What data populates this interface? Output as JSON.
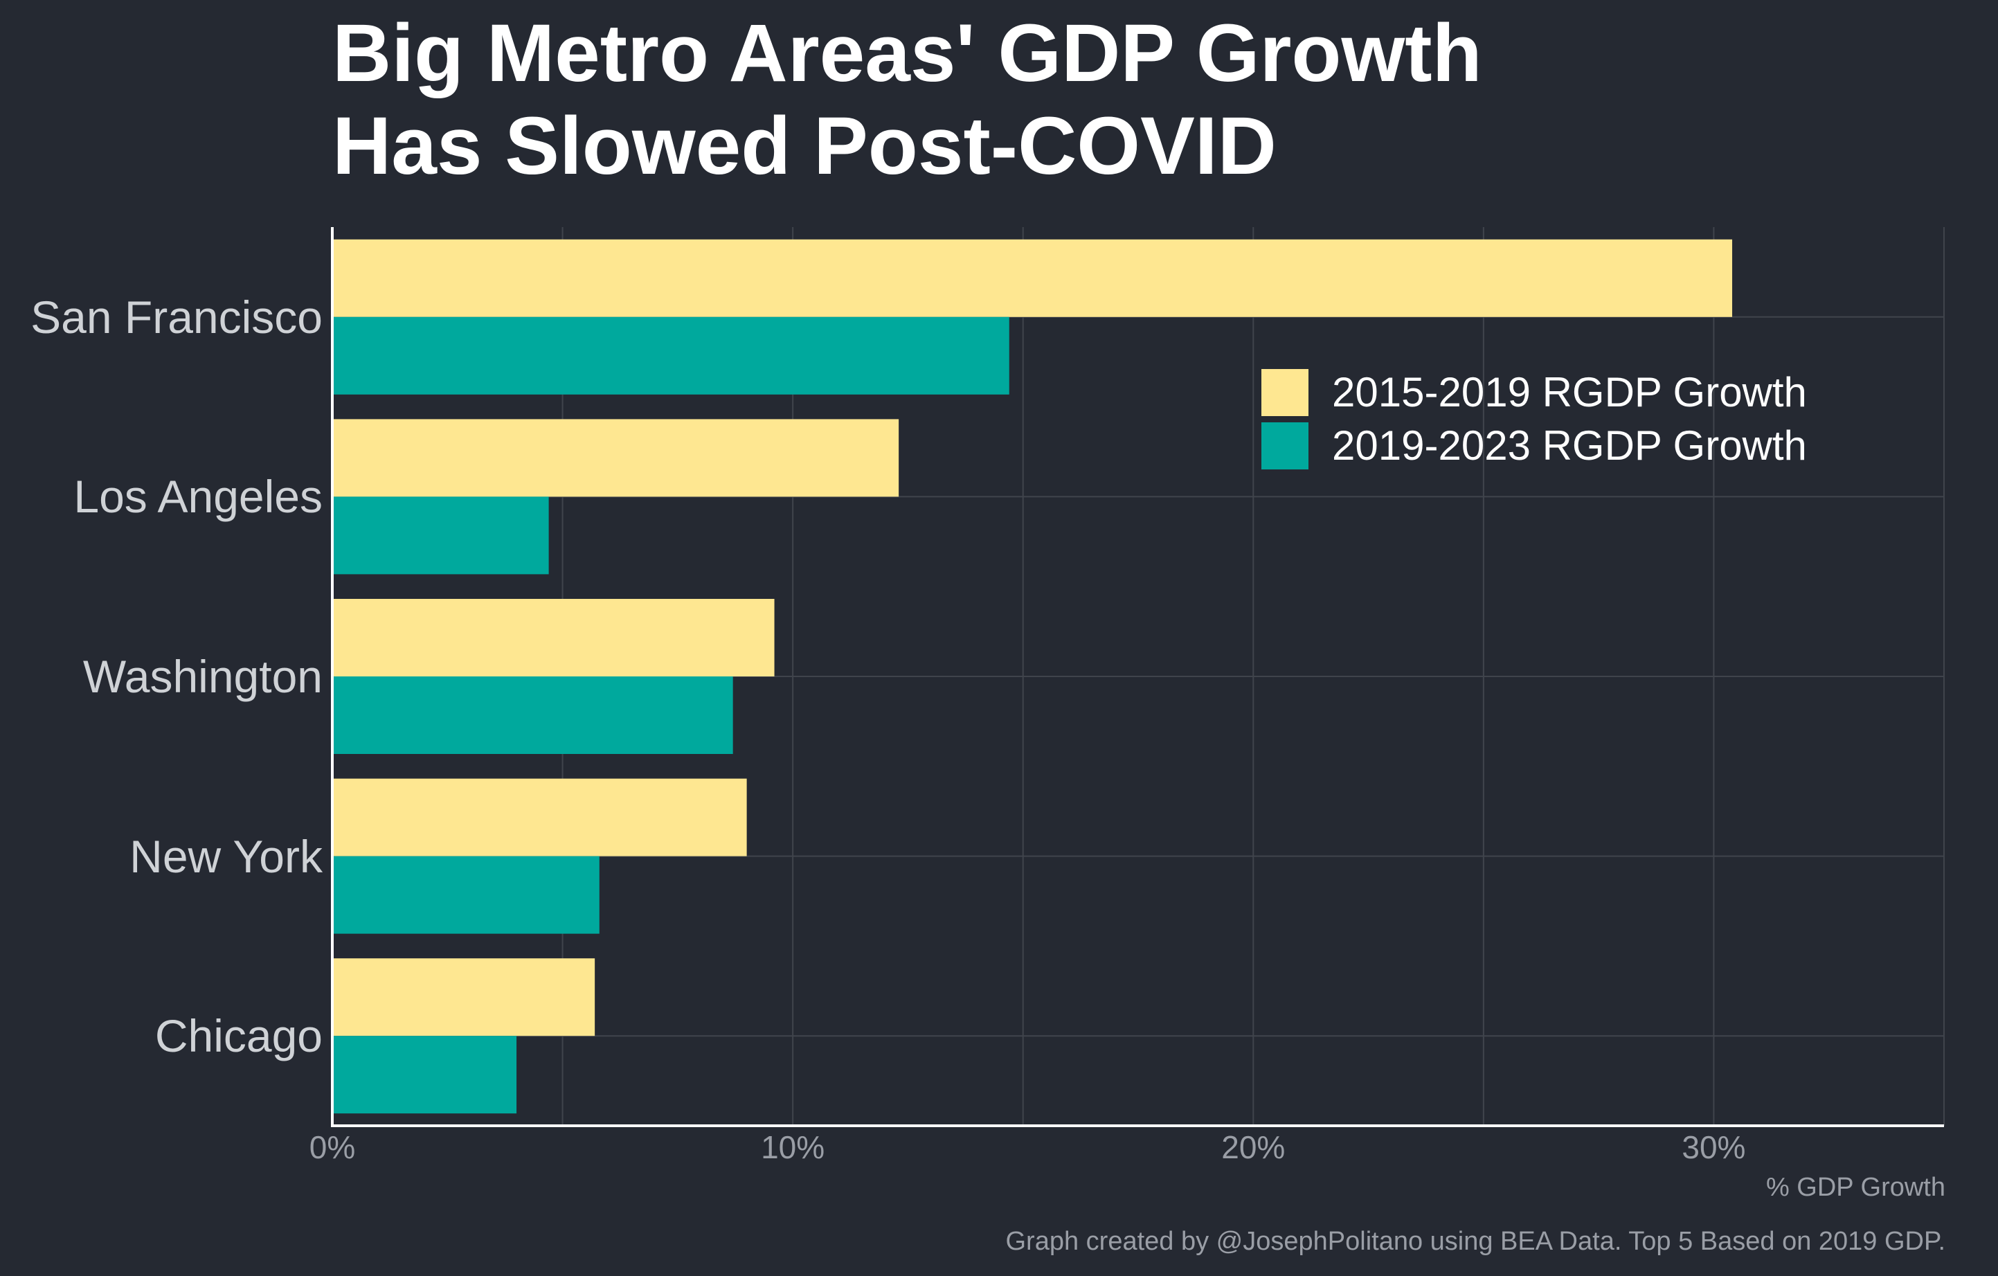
{
  "title_lines": [
    "Big Metro Areas' GDP Growth",
    "Has Slowed Post-COVID"
  ],
  "footer": "Graph created by @JosephPolitano using BEA Data. Top 5 Based on 2019 GDP.",
  "colors": {
    "background": "#252932",
    "series_2015_2019": "#fee791",
    "series_2019_2023": "#00a99d",
    "grid": "#40444c",
    "axis": "#ffffff"
  },
  "chart_data": {
    "type": "bar",
    "orientation": "horizontal",
    "categories": [
      "San Francisco",
      "Los Angeles",
      "Washington",
      "New York",
      "Chicago"
    ],
    "series": [
      {
        "name": "2015-2019 RGDP Growth",
        "values": [
          30.4,
          12.3,
          9.6,
          9.0,
          5.7
        ]
      },
      {
        "name": "2019-2023 RGDP Growth",
        "values": [
          14.7,
          4.7,
          8.7,
          5.8,
          4.0
        ]
      }
    ],
    "xlabel": "% GDP Growth",
    "xlim": [
      0,
      35
    ],
    "xticks": [
      {
        "value": 0,
        "label": "0%"
      },
      {
        "value": 10,
        "label": "10%"
      },
      {
        "value": 20,
        "label": "20%"
      },
      {
        "value": 30,
        "label": "30%"
      }
    ],
    "grid": true,
    "legend_position": "top-right"
  }
}
